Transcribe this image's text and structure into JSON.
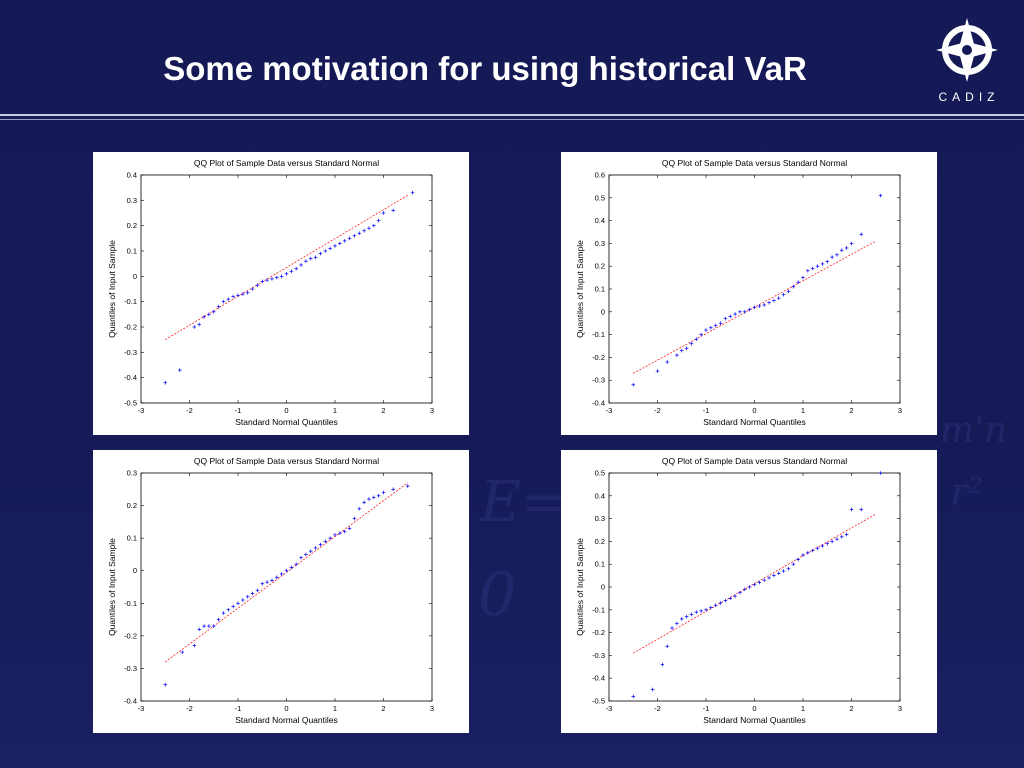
{
  "slide": {
    "title": "Some motivation for using historical VaR",
    "logo_text": "CADIZ",
    "logo_icon": "compass-star-icon"
  },
  "colors": {
    "background": "#151a57",
    "marker": "#0000ff",
    "refline": "#ff0000"
  },
  "chart_data": [
    {
      "type": "scatter",
      "title": "QQ Plot of Sample Data versus Standard Normal",
      "xlabel": "Standard Normal Quantiles",
      "ylabel": "Quantiles of Input Sample",
      "xlim": [
        -3,
        3
      ],
      "ylim": [
        -0.5,
        0.4
      ],
      "xticks": [
        "-3",
        "-2",
        "-1",
        "0",
        "1",
        "2",
        "3"
      ],
      "yticks": [
        "-0.5",
        "-0.4",
        "-0.3",
        "-0.2",
        "-0.1",
        "0",
        "0.1",
        "0.2",
        "0.3",
        "0.4"
      ],
      "reference_line": {
        "x": [
          -2.5,
          2.5
        ],
        "y": [
          -0.25,
          0.32
        ]
      },
      "series": [
        {
          "x": [
            -2.5,
            -2.2,
            -1.9,
            -1.8,
            -1.7,
            -1.6,
            -1.5,
            -1.4,
            -1.3,
            -1.2,
            -1.1,
            -1.0,
            -0.9,
            -0.8,
            -0.7,
            -0.6,
            -0.5,
            -0.4,
            -0.3,
            -0.2,
            -0.1,
            0.0,
            0.1,
            0.2,
            0.3,
            0.4,
            0.5,
            0.6,
            0.7,
            0.8,
            0.9,
            1.0,
            1.1,
            1.2,
            1.3,
            1.4,
            1.5,
            1.6,
            1.7,
            1.8,
            1.9,
            2.0,
            2.2,
            2.6
          ],
          "y": [
            -0.42,
            -0.37,
            -0.2,
            -0.19,
            -0.16,
            -0.15,
            -0.14,
            -0.12,
            -0.1,
            -0.09,
            -0.08,
            -0.075,
            -0.07,
            -0.065,
            -0.05,
            -0.035,
            -0.02,
            -0.015,
            -0.01,
            -0.005,
            0.0,
            0.01,
            0.02,
            0.03,
            0.045,
            0.06,
            0.07,
            0.075,
            0.09,
            0.1,
            0.11,
            0.12,
            0.13,
            0.14,
            0.15,
            0.16,
            0.17,
            0.18,
            0.19,
            0.2,
            0.22,
            0.25,
            0.26,
            0.33
          ]
        }
      ]
    },
    {
      "type": "scatter",
      "title": "QQ Plot of Sample Data versus Standard Normal",
      "xlabel": "Standard Normal Quantiles",
      "ylabel": "Quantiles of Input Sample",
      "xlim": [
        -3,
        3
      ],
      "ylim": [
        -0.4,
        0.6
      ],
      "xticks": [
        "-3",
        "-2",
        "-1",
        "0",
        "1",
        "2",
        "3"
      ],
      "yticks": [
        "-0.4",
        "-0.3",
        "-0.2",
        "-0.1",
        "0",
        "0.1",
        "0.2",
        "0.3",
        "0.4",
        "0.5",
        "0.6"
      ],
      "reference_line": {
        "x": [
          -2.5,
          2.5
        ],
        "y": [
          -0.27,
          0.31
        ]
      },
      "series": [
        {
          "x": [
            -2.5,
            -2.0,
            -1.8,
            -1.6,
            -1.5,
            -1.4,
            -1.3,
            -1.2,
            -1.1,
            -1.0,
            -0.9,
            -0.8,
            -0.7,
            -0.6,
            -0.5,
            -0.4,
            -0.3,
            -0.2,
            -0.1,
            0.0,
            0.1,
            0.2,
            0.3,
            0.4,
            0.5,
            0.6,
            0.7,
            0.8,
            0.9,
            1.0,
            1.1,
            1.2,
            1.3,
            1.4,
            1.5,
            1.6,
            1.7,
            1.8,
            1.9,
            2.0,
            2.2,
            2.6
          ],
          "y": [
            -0.32,
            -0.26,
            -0.22,
            -0.19,
            -0.17,
            -0.16,
            -0.14,
            -0.12,
            -0.1,
            -0.08,
            -0.07,
            -0.06,
            -0.05,
            -0.03,
            -0.02,
            -0.01,
            0.0,
            0.0,
            0.01,
            0.02,
            0.025,
            0.03,
            0.04,
            0.05,
            0.06,
            0.075,
            0.09,
            0.11,
            0.13,
            0.15,
            0.18,
            0.19,
            0.2,
            0.21,
            0.22,
            0.24,
            0.25,
            0.27,
            0.28,
            0.3,
            0.34,
            0.51
          ]
        }
      ]
    },
    {
      "type": "scatter",
      "title": "QQ Plot of Sample Data versus Standard Normal",
      "xlabel": "Standard Normal Quantiles",
      "ylabel": "Quantiles of Input Sample",
      "xlim": [
        -3,
        3
      ],
      "ylim": [
        -0.4,
        0.3
      ],
      "xticks": [
        "-3",
        "-2",
        "-1",
        "0",
        "1",
        "2",
        "3"
      ],
      "yticks": [
        "-0.4",
        "-0.3",
        "-0.2",
        "-0.1",
        "0",
        "0.1",
        "0.2",
        "0.3"
      ],
      "reference_line": {
        "x": [
          -2.5,
          2.5
        ],
        "y": [
          -0.28,
          0.27
        ]
      },
      "series": [
        {
          "x": [
            -2.5,
            -2.15,
            -1.9,
            -1.8,
            -1.7,
            -1.6,
            -1.5,
            -1.4,
            -1.3,
            -1.2,
            -1.1,
            -1.0,
            -0.9,
            -0.8,
            -0.7,
            -0.6,
            -0.5,
            -0.4,
            -0.3,
            -0.2,
            -0.1,
            0.0,
            0.1,
            0.2,
            0.3,
            0.4,
            0.5,
            0.6,
            0.7,
            0.8,
            0.9,
            1.0,
            1.1,
            1.2,
            1.3,
            1.4,
            1.5,
            1.6,
            1.7,
            1.8,
            1.9,
            2.0,
            2.2,
            2.5
          ],
          "y": [
            -0.35,
            -0.25,
            -0.23,
            -0.18,
            -0.17,
            -0.17,
            -0.17,
            -0.15,
            -0.13,
            -0.12,
            -0.11,
            -0.1,
            -0.09,
            -0.08,
            -0.07,
            -0.06,
            -0.04,
            -0.035,
            -0.03,
            -0.02,
            -0.01,
            0.0,
            0.01,
            0.02,
            0.04,
            0.05,
            0.06,
            0.07,
            0.08,
            0.09,
            0.1,
            0.11,
            0.115,
            0.12,
            0.13,
            0.16,
            0.19,
            0.21,
            0.22,
            0.225,
            0.23,
            0.24,
            0.25,
            0.26
          ]
        }
      ]
    },
    {
      "type": "scatter",
      "title": "QQ Plot of Sample Data versus Standard Normal",
      "xlabel": "Standard Normal Quantiles",
      "ylabel": "Quantiles of Input Sample",
      "xlim": [
        -3,
        3
      ],
      "ylim": [
        -0.5,
        0.5
      ],
      "xticks": [
        "-3",
        "-2",
        "-1",
        "0",
        "1",
        "2",
        "3"
      ],
      "yticks": [
        "-0.5",
        "-0.4",
        "-0.3",
        "-0.2",
        "-0.1",
        "0",
        "0.1",
        "0.2",
        "0.3",
        "0.4",
        "0.5"
      ],
      "reference_line": {
        "x": [
          -2.5,
          2.5
        ],
        "y": [
          -0.29,
          0.32
        ]
      },
      "series": [
        {
          "x": [
            -2.5,
            -2.1,
            -1.9,
            -1.8,
            -1.7,
            -1.6,
            -1.5,
            -1.4,
            -1.3,
            -1.2,
            -1.1,
            -1.0,
            -0.9,
            -0.8,
            -0.7,
            -0.6,
            -0.5,
            -0.4,
            -0.3,
            -0.2,
            -0.1,
            0.0,
            0.1,
            0.2,
            0.3,
            0.4,
            0.5,
            0.6,
            0.7,
            0.8,
            0.9,
            1.0,
            1.1,
            1.2,
            1.3,
            1.4,
            1.5,
            1.6,
            1.7,
            1.8,
            1.9,
            2.0,
            2.2,
            2.6
          ],
          "y": [
            -0.48,
            -0.45,
            -0.34,
            -0.26,
            -0.18,
            -0.16,
            -0.14,
            -0.13,
            -0.12,
            -0.11,
            -0.105,
            -0.1,
            -0.09,
            -0.08,
            -0.07,
            -0.06,
            -0.05,
            -0.04,
            -0.025,
            -0.01,
            0.0,
            0.01,
            0.02,
            0.03,
            0.04,
            0.05,
            0.06,
            0.07,
            0.08,
            0.1,
            0.12,
            0.14,
            0.15,
            0.16,
            0.17,
            0.18,
            0.19,
            0.2,
            0.21,
            0.22,
            0.23,
            0.34,
            0.34,
            0.5
          ]
        }
      ]
    }
  ]
}
